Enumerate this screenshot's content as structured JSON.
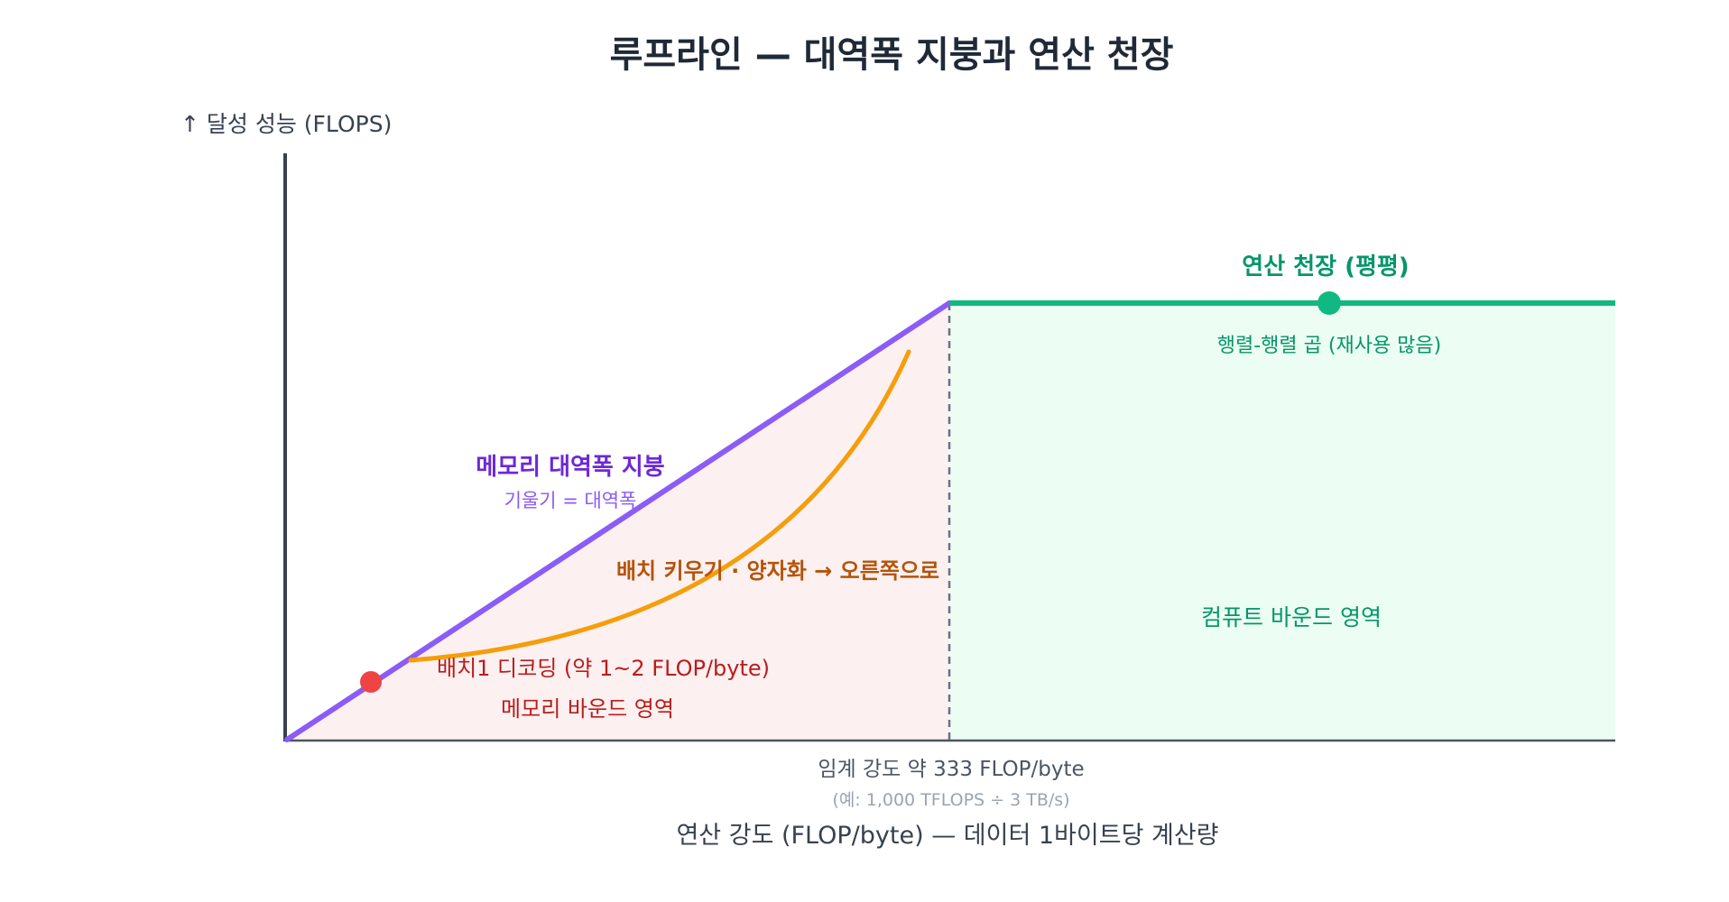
{
  "title": "루프라인 — 대역폭 지붕과 연산 천장",
  "y_axis_label": "↑  달성 성능 (FLOPS)",
  "x_axis_label": "연산 강도 (FLOP/byte) — 데이터 1바이트당 계산량",
  "ridge": {
    "label": "임계 강도 약 333 FLOP/byte",
    "note": "(예: 1,000 TFLOPS ÷ 3 TB/s)"
  },
  "memory_roof": {
    "title": "메모리 대역폭 지붕",
    "subtitle": "기울기 = 대역폭"
  },
  "compute_ceiling": {
    "title": "연산 천장 (평평)",
    "point_label": "행렬-행렬 곱 (재사용 많음)"
  },
  "regions": {
    "memory_bound": "메모리 바운드 영역",
    "compute_bound": "컴퓨트 바운드 영역"
  },
  "decode_point_label": "배치1 디코딩 (약 1~2 FLOP/byte)",
  "arrow_label": "배치 키우기 · 양자화 → 오른쪽으로",
  "colors": {
    "memory_roof": "#8b5cf6",
    "memory_roof_text": "#6d28d9",
    "compute_ceiling": "#10b981",
    "compute_text": "#059669",
    "compute_region_fill": "#ecfdf3",
    "memory_region_fill": "#fdf0f0",
    "memory_region_text": "#b91c1c",
    "decode_point": "#ef4444",
    "arrow": "#f59e0b",
    "arrow_text": "#b45309",
    "axis": "#374151",
    "title": "#1f2937"
  }
}
